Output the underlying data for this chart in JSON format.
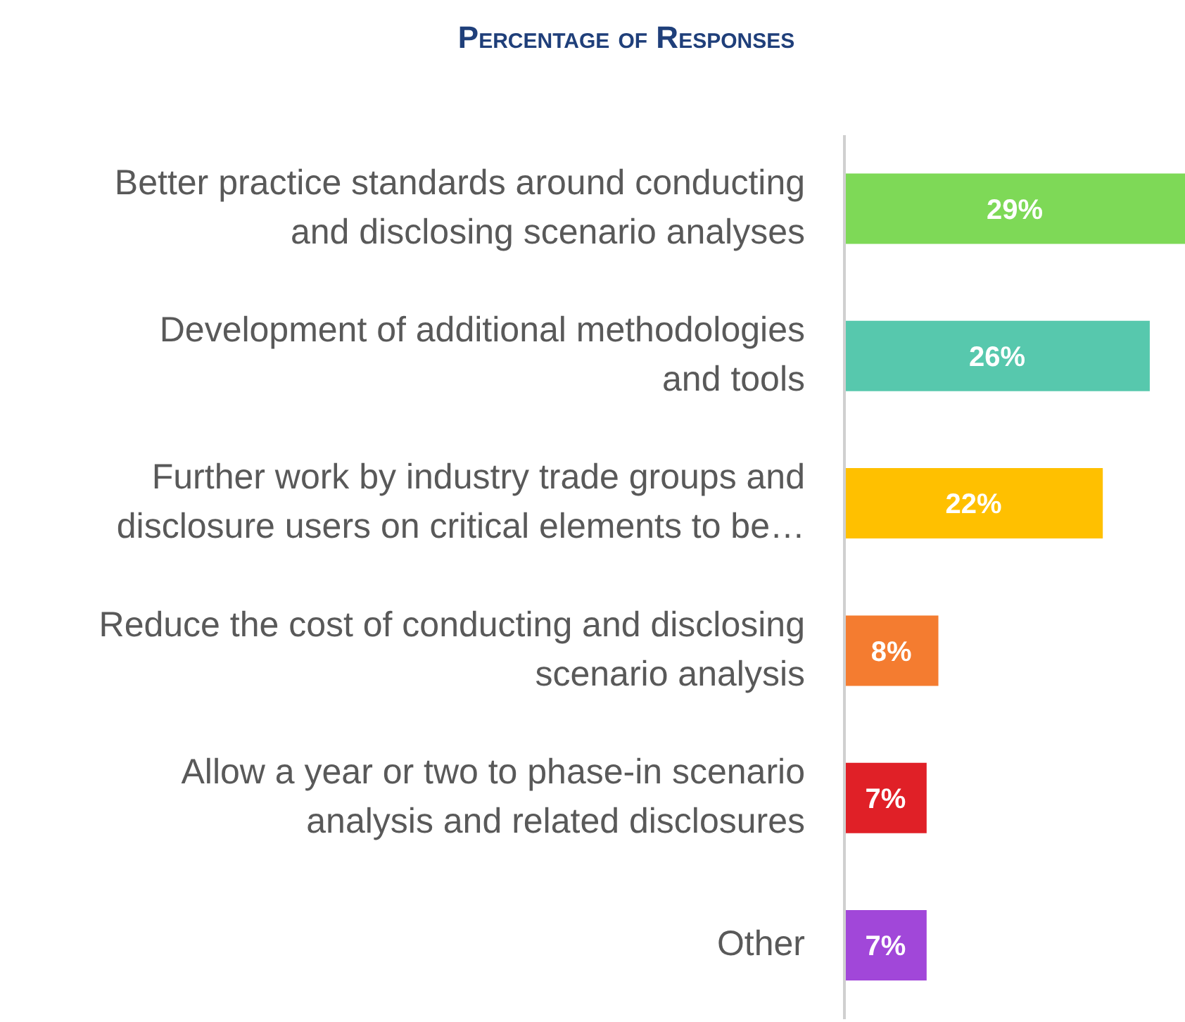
{
  "chart_data": {
    "type": "bar",
    "orientation": "horizontal",
    "title": "Percentage of Responses",
    "categories": [
      "Better practice standards around conducting\nand disclosing scenario analyses",
      "Development of additional methodologies\nand tools",
      "Further work by industry trade groups and\ndisclosure users on critical elements to be…",
      "Reduce the cost of conducting and disclosing\nscenario analysis",
      "Allow a year or two to phase-in scenario\nanalysis and related disclosures",
      "Other"
    ],
    "values": [
      29,
      26,
      22,
      8,
      7,
      7
    ],
    "value_labels": [
      "29%",
      "26%",
      "22%",
      "8%",
      "7%",
      "7%"
    ],
    "colors": [
      "#7ed957",
      "#57c8ad",
      "#ffc000",
      "#f47c30",
      "#e02027",
      "#a147d9"
    ]
  }
}
